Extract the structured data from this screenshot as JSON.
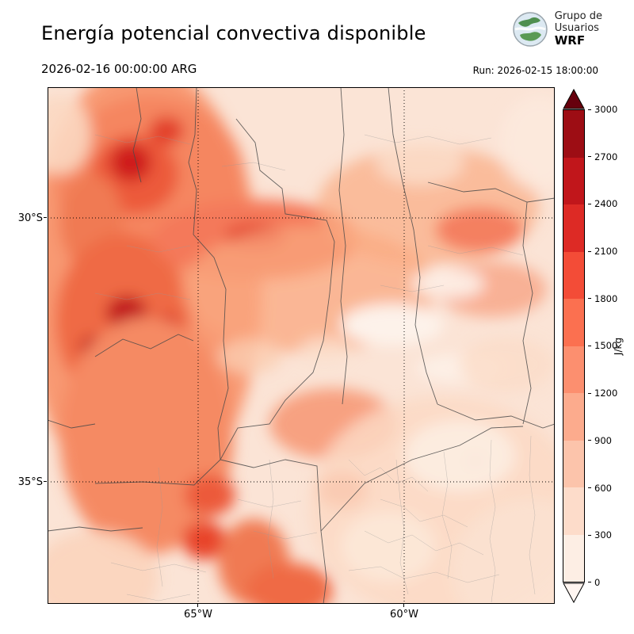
{
  "header": {
    "title": "Energía potencial convectiva disponible",
    "logo": {
      "line1": "Grupo de",
      "line2": "Usuarios",
      "acronym": "WRF"
    }
  },
  "subheader": {
    "valid_time": "2026-02-16 00:00:00 ARG",
    "run": "Run: 2026-02-15 18:00:00"
  },
  "map": {
    "lat_ticks": [
      "30°S",
      "35°S"
    ],
    "lon_ticks": [
      "65°W",
      "60°W"
    ]
  },
  "colorbar": {
    "unit": "J/kg",
    "ticks": [
      "3000",
      "2700",
      "2400",
      "2100",
      "1800",
      "1500",
      "1200",
      "900",
      "600",
      "300",
      "0"
    ],
    "segment_colors_top_to_bottom": [
      "#9d0d14",
      "#c1161b",
      "#dd2a25",
      "#f34c37",
      "#fb7050",
      "#fc8f6f",
      "#fcab8d",
      "#fcc4ab",
      "#fddcca",
      "#fdeee4"
    ],
    "over_color": "#67000d",
    "under_color": "#fff5f0"
  }
}
